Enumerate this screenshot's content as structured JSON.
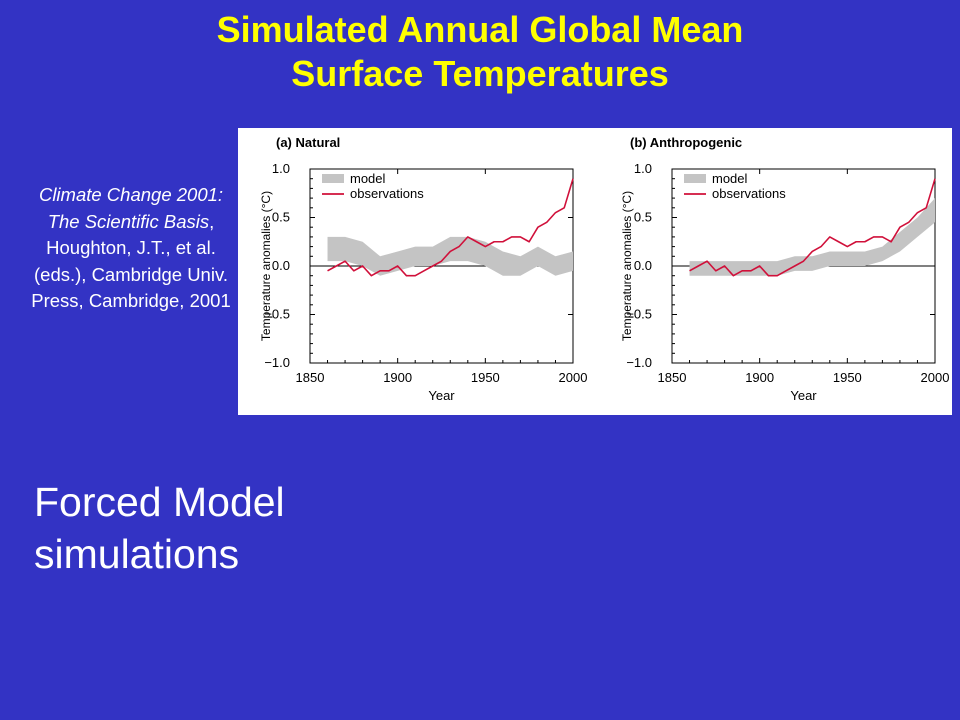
{
  "title_line1": "Simulated Annual Global Mean",
  "title_line2": "Surface Temperatures",
  "citation": {
    "italic": "Climate Change 2001: The Scientific Basis",
    "rest": ", Houghton, J.T., et al. (eds.), Cambridge Univ. Press, Cambridge, 2001"
  },
  "caption_line1": "Forced Model",
  "caption_line2": "simulations",
  "colors": {
    "background": "#3333c4",
    "title": "#ffff00",
    "model_band": "#c4c4c4",
    "observations": "#d0103a"
  },
  "chart_data": [
    {
      "type": "line",
      "title": "(a) Natural",
      "xlabel": "Year",
      "ylabel": "Temperature anomalies (°C)",
      "xlim": [
        1850,
        2000
      ],
      "ylim": [
        -1.0,
        1.0
      ],
      "xticks": [
        "1850",
        "1900",
        "1950",
        "2000"
      ],
      "yticks": [
        "1.0",
        "0.5",
        "0.0",
        "−0.5",
        "−1.0"
      ],
      "legend": [
        "model",
        "observations"
      ],
      "legend_position": "top-left",
      "series": [
        {
          "name": "model",
          "kind": "band",
          "x": [
            1860,
            1870,
            1880,
            1890,
            1900,
            1910,
            1920,
            1930,
            1940,
            1950,
            1960,
            1970,
            1980,
            1990,
            2000
          ],
          "low": [
            0.05,
            0.05,
            0.0,
            -0.1,
            -0.05,
            0.0,
            0.0,
            0.05,
            0.05,
            0.0,
            -0.1,
            -0.1,
            0.0,
            -0.1,
            -0.05
          ],
          "high": [
            0.3,
            0.3,
            0.25,
            0.1,
            0.15,
            0.2,
            0.2,
            0.3,
            0.3,
            0.25,
            0.15,
            0.1,
            0.2,
            0.1,
            0.15
          ]
        },
        {
          "name": "observations",
          "kind": "line",
          "x": [
            1860,
            1865,
            1870,
            1875,
            1880,
            1885,
            1890,
            1895,
            1900,
            1905,
            1910,
            1915,
            1920,
            1925,
            1930,
            1935,
            1940,
            1945,
            1950,
            1955,
            1960,
            1965,
            1970,
            1975,
            1980,
            1985,
            1990,
            1995,
            2000
          ],
          "y": [
            -0.05,
            0.0,
            0.05,
            -0.05,
            0.0,
            -0.1,
            -0.05,
            -0.05,
            0.0,
            -0.1,
            -0.1,
            -0.05,
            0.0,
            0.05,
            0.15,
            0.2,
            0.3,
            0.25,
            0.2,
            0.25,
            0.25,
            0.3,
            0.3,
            0.25,
            0.4,
            0.45,
            0.55,
            0.6,
            0.9
          ]
        }
      ]
    },
    {
      "type": "line",
      "title": "(b) Anthropogenic",
      "xlabel": "Year",
      "ylabel": "Temperature anomalies (°C)",
      "xlim": [
        1850,
        2000
      ],
      "ylim": [
        -1.0,
        1.0
      ],
      "xticks": [
        "1850",
        "1900",
        "1950",
        "2000"
      ],
      "yticks": [
        "1.0",
        "0.5",
        "0.0",
        "−0.5",
        "−1.0"
      ],
      "legend": [
        "model",
        "observations"
      ],
      "legend_position": "top-left",
      "series": [
        {
          "name": "model",
          "kind": "band",
          "x": [
            1860,
            1870,
            1880,
            1890,
            1900,
            1910,
            1920,
            1930,
            1940,
            1950,
            1960,
            1970,
            1980,
            1990,
            2000
          ],
          "low": [
            -0.1,
            -0.1,
            -0.1,
            -0.1,
            -0.1,
            -0.1,
            -0.05,
            -0.05,
            0.0,
            0.0,
            0.0,
            0.05,
            0.15,
            0.3,
            0.45
          ],
          "high": [
            0.05,
            0.05,
            0.05,
            0.05,
            0.05,
            0.05,
            0.1,
            0.1,
            0.15,
            0.15,
            0.15,
            0.2,
            0.35,
            0.5,
            0.7
          ]
        },
        {
          "name": "observations",
          "kind": "line",
          "x": [
            1860,
            1865,
            1870,
            1875,
            1880,
            1885,
            1890,
            1895,
            1900,
            1905,
            1910,
            1915,
            1920,
            1925,
            1930,
            1935,
            1940,
            1945,
            1950,
            1955,
            1960,
            1965,
            1970,
            1975,
            1980,
            1985,
            1990,
            1995,
            2000
          ],
          "y": [
            -0.05,
            0.0,
            0.05,
            -0.05,
            0.0,
            -0.1,
            -0.05,
            -0.05,
            0.0,
            -0.1,
            -0.1,
            -0.05,
            0.0,
            0.05,
            0.15,
            0.2,
            0.3,
            0.25,
            0.2,
            0.25,
            0.25,
            0.3,
            0.3,
            0.25,
            0.4,
            0.45,
            0.55,
            0.6,
            0.9
          ]
        }
      ]
    }
  ]
}
